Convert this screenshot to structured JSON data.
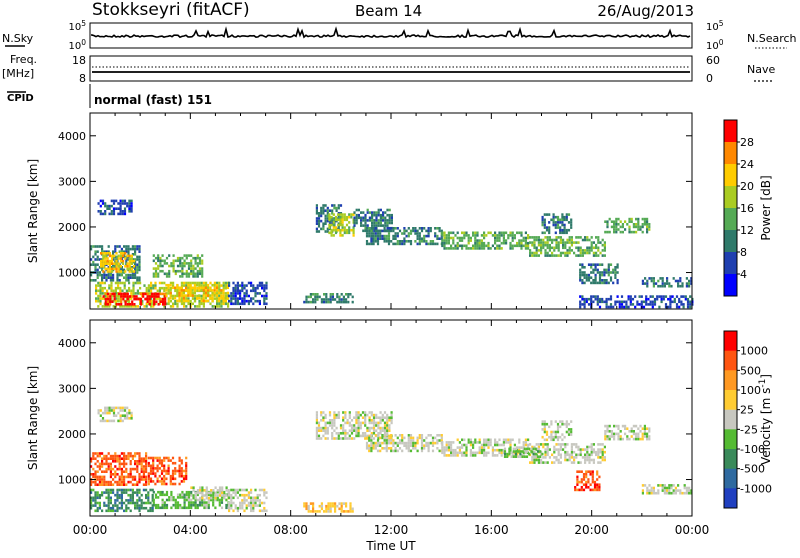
{
  "header": {
    "station": "Stokkseyri (fitACF)",
    "beam": "Beam 14",
    "date": "26/Aug/2013"
  },
  "top_panels": {
    "nsky_label": "N.Sky",
    "nsky_ticks": [
      "10^5",
      "10^0"
    ],
    "nsearch_label": "N.Search",
    "nsearch_ticks": [
      "10^5",
      "10^0"
    ],
    "freq_label": "Freq.",
    "freq_unit": "[MHz]",
    "freq_ticks": [
      "18",
      "8"
    ],
    "nave_label": "Nave",
    "nave_ticks": [
      "60",
      "0"
    ],
    "cpid_label": "CPID",
    "cpid_value": "normal (fast) 151"
  },
  "chart_data": [
    {
      "type": "heatmap",
      "name": "power",
      "ylabel": "Slant Range [km]",
      "yticks": [
        "1000",
        "2000",
        "3000",
        "4000"
      ],
      "ylim": [
        200,
        4500
      ],
      "xlim": [
        0,
        24
      ],
      "colorbar": {
        "label": "Power [dB]",
        "ticks": [
          "4",
          "8",
          "12",
          "16",
          "20",
          "24",
          "28"
        ],
        "colors": [
          "#0000ff",
          "#1f3fb0",
          "#2f7a6a",
          "#55aa55",
          "#aacc22",
          "#ffcc00",
          "#ff8800",
          "#ff0000"
        ]
      },
      "regions": [
        {
          "x": [
            0.0,
            2.0
          ],
          "y": [
            850,
            1600
          ],
          "level": 2
        },
        {
          "x": [
            0.4,
            1.8
          ],
          "y": [
            1050,
            1450
          ],
          "level": 5
        },
        {
          "x": [
            2.5,
            4.5
          ],
          "y": [
            900,
            1400
          ],
          "level": 3
        },
        {
          "x": [
            0.2,
            5.5
          ],
          "y": [
            250,
            800
          ],
          "level": 4
        },
        {
          "x": [
            0.5,
            3.0
          ],
          "y": [
            280,
            560
          ],
          "level": 7
        },
        {
          "x": [
            3.0,
            5.5
          ],
          "y": [
            400,
            750
          ],
          "level": 5
        },
        {
          "x": [
            0.3,
            1.7
          ],
          "y": [
            2300,
            2600
          ],
          "level": 1
        },
        {
          "x": [
            5.5,
            7.0
          ],
          "y": [
            300,
            800
          ],
          "level": 1
        },
        {
          "x": [
            9.0,
            10.0
          ],
          "y": [
            1900,
            2500
          ],
          "level": 2
        },
        {
          "x": [
            9.5,
            10.5
          ],
          "y": [
            1800,
            2300
          ],
          "level": 4
        },
        {
          "x": [
            10.5,
            12.0
          ],
          "y": [
            1900,
            2400
          ],
          "level": 2
        },
        {
          "x": [
            11.0,
            14.0
          ],
          "y": [
            1650,
            2000
          ],
          "level": 2
        },
        {
          "x": [
            14.0,
            17.5
          ],
          "y": [
            1550,
            1900
          ],
          "level": 3
        },
        {
          "x": [
            17.5,
            20.5
          ],
          "y": [
            1400,
            1800
          ],
          "level": 3
        },
        {
          "x": [
            18.0,
            19.2
          ],
          "y": [
            1900,
            2300
          ],
          "level": 2
        },
        {
          "x": [
            20.5,
            22.3
          ],
          "y": [
            1900,
            2200
          ],
          "level": 3
        },
        {
          "x": [
            19.5,
            21.0
          ],
          "y": [
            800,
            1200
          ],
          "level": 2
        },
        {
          "x": [
            22.0,
            24.0
          ],
          "y": [
            700,
            900
          ],
          "level": 2
        },
        {
          "x": [
            8.5,
            10.5
          ],
          "y": [
            350,
            550
          ],
          "level": 2
        },
        {
          "x": [
            19.5,
            24.0
          ],
          "y": [
            250,
            500
          ],
          "level": 1
        }
      ]
    },
    {
      "type": "heatmap",
      "name": "velocity",
      "xlabel": "Time UT",
      "ylabel": "Slant Range [km]",
      "xticks": [
        "00:00",
        "04:00",
        "08:00",
        "12:00",
        "16:00",
        "20:00",
        "00:00"
      ],
      "yticks": [
        "1000",
        "2000",
        "3000",
        "4000"
      ],
      "ylim": [
        200,
        4500
      ],
      "xlim": [
        0,
        24
      ],
      "colorbar": {
        "label": "Velocity [m s^-1]",
        "ticks": [
          "1000",
          "500",
          "100",
          "25",
          "-25",
          "-100",
          "-500",
          "-1000"
        ],
        "colors": [
          "#2040c0",
          "#2f6aa0",
          "#3a8a5a",
          "#55bb33",
          "#c8c8c0",
          "#ffcc33",
          "#ff9922",
          "#ff5511",
          "#ff0000"
        ]
      },
      "regions": [
        {
          "x": [
            0.0,
            2.2
          ],
          "y": [
            900,
            1600
          ],
          "c": 7
        },
        {
          "x": [
            2.3,
            3.8
          ],
          "y": [
            900,
            1500
          ],
          "c": 7
        },
        {
          "x": [
            0.0,
            2.5
          ],
          "y": [
            300,
            800
          ],
          "c": 2
        },
        {
          "x": [
            2.5,
            5.5
          ],
          "y": [
            400,
            750
          ],
          "c": 3
        },
        {
          "x": [
            4.0,
            5.5
          ],
          "y": [
            600,
            850
          ],
          "c": 4
        },
        {
          "x": [
            0.3,
            1.7
          ],
          "y": [
            2300,
            2600
          ],
          "c": 4
        },
        {
          "x": [
            5.5,
            7.0
          ],
          "y": [
            300,
            800
          ],
          "c": 4
        },
        {
          "x": [
            9.0,
            12.0
          ],
          "y": [
            1900,
            2500
          ],
          "c": 4
        },
        {
          "x": [
            11.0,
            14.0
          ],
          "y": [
            1650,
            2000
          ],
          "c": 4
        },
        {
          "x": [
            14.0,
            17.5
          ],
          "y": [
            1550,
            1900
          ],
          "c": 4
        },
        {
          "x": [
            17.5,
            20.5
          ],
          "y": [
            1400,
            1800
          ],
          "c": 4
        },
        {
          "x": [
            18.0,
            19.2
          ],
          "y": [
            1900,
            2300
          ],
          "c": 4
        },
        {
          "x": [
            20.5,
            22.3
          ],
          "y": [
            1900,
            2200
          ],
          "c": 4
        },
        {
          "x": [
            19.3,
            20.3
          ],
          "y": [
            800,
            1200
          ],
          "c": 7
        },
        {
          "x": [
            22.0,
            24.0
          ],
          "y": [
            700,
            900
          ],
          "c": 4
        },
        {
          "x": [
            8.5,
            10.5
          ],
          "y": [
            300,
            500
          ],
          "c": 5
        },
        {
          "x": [
            16.5,
            18.0
          ],
          "y": [
            1500,
            1700
          ],
          "c": 3
        }
      ]
    }
  ]
}
